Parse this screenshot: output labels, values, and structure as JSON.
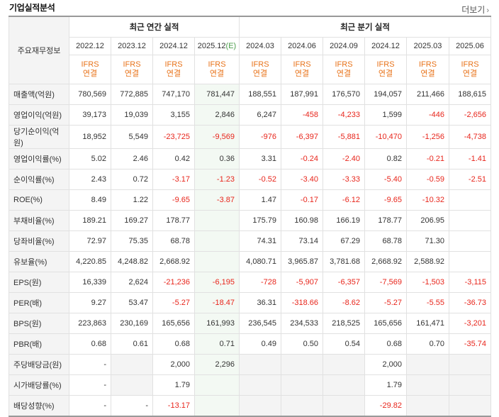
{
  "header": {
    "title": "기업실적분석",
    "more_label": "더보기"
  },
  "table": {
    "row_header": "주요재무정보",
    "group_annual": "최근 연간 실적",
    "group_quarter": "최근 분기 실적",
    "periods": [
      "2022.12",
      "2023.12",
      "2024.12",
      "2025.12",
      "2024.03",
      "2024.06",
      "2024.09",
      "2024.12",
      "2025.03",
      "2025.06"
    ],
    "est_mark": "(E)",
    "ifrs_line1": "IFRS",
    "ifrs_line2": "연결",
    "rows": [
      {
        "label": "매출액(억원)",
        "values": [
          "780,569",
          "772,885",
          "747,170",
          "781,447",
          "188,551",
          "187,991",
          "176,570",
          "194,057",
          "211,466",
          "188,615"
        ]
      },
      {
        "label": "영업이익(억원)",
        "values": [
          "39,173",
          "19,039",
          "3,155",
          "2,846",
          "6,247",
          "-458",
          "-4,233",
          "1,599",
          "-446",
          "-2,656"
        ]
      },
      {
        "label": "당기순이익(억원)",
        "values": [
          "18,952",
          "5,549",
          "-23,725",
          "-9,569",
          "-976",
          "-6,397",
          "-5,881",
          "-10,470",
          "-1,256",
          "-4,738"
        ]
      },
      {
        "label": "영업이익률(%)",
        "values": [
          "5.02",
          "2.46",
          "0.42",
          "0.36",
          "3.31",
          "-0.24",
          "-2.40",
          "0.82",
          "-0.21",
          "-1.41"
        ]
      },
      {
        "label": "순이익률(%)",
        "values": [
          "2.43",
          "0.72",
          "-3.17",
          "-1.23",
          "-0.52",
          "-3.40",
          "-3.33",
          "-5.40",
          "-0.59",
          "-2.51"
        ]
      },
      {
        "label": "ROE(%)",
        "values": [
          "8.49",
          "1.22",
          "-9.65",
          "-3.87",
          "1.47",
          "-0.17",
          "-6.12",
          "-9.65",
          "-10.32",
          ""
        ]
      },
      {
        "label": "부채비율(%)",
        "values": [
          "189.21",
          "169.27",
          "178.77",
          "",
          "175.79",
          "160.98",
          "166.19",
          "178.77",
          "206.95",
          ""
        ]
      },
      {
        "label": "당좌비율(%)",
        "values": [
          "72.97",
          "75.35",
          "68.78",
          "",
          "74.31",
          "73.14",
          "67.29",
          "68.78",
          "71.30",
          ""
        ]
      },
      {
        "label": "유보율(%)",
        "values": [
          "4,220.85",
          "4,248.82",
          "2,668.92",
          "",
          "4,080.71",
          "3,965.87",
          "3,781.68",
          "2,668.92",
          "2,588.92",
          ""
        ]
      },
      {
        "label": "EPS(원)",
        "values": [
          "16,339",
          "2,624",
          "-21,236",
          "-6,195",
          "-728",
          "-5,907",
          "-6,357",
          "-7,569",
          "-1,503",
          "-3,115"
        ]
      },
      {
        "label": "PER(배)",
        "values": [
          "9.27",
          "53.47",
          "-5.27",
          "-18.47",
          "36.31",
          "-318.66",
          "-8.62",
          "-5.27",
          "-5.55",
          "-36.73"
        ]
      },
      {
        "label": "BPS(원)",
        "values": [
          "223,863",
          "230,169",
          "165,656",
          "161,993",
          "236,545",
          "234,533",
          "218,525",
          "165,656",
          "161,471",
          "-3,201"
        ]
      },
      {
        "label": "PBR(배)",
        "values": [
          "0.68",
          "0.61",
          "0.68",
          "0.71",
          "0.49",
          "0.50",
          "0.54",
          "0.68",
          "0.70",
          "-35.74"
        ]
      },
      {
        "label": "주당배당금(원)",
        "values": [
          "-",
          "",
          "2,000",
          "2,296",
          "",
          "",
          "",
          "2,000",
          "",
          ""
        ]
      },
      {
        "label": "시가배당률(%)",
        "values": [
          "-",
          "",
          "1.79",
          "",
          "",
          "",
          "",
          "1.79",
          "",
          ""
        ]
      },
      {
        "label": "배당성향(%)",
        "values": [
          "-",
          "-",
          "-13.17",
          "",
          "",
          "",
          "",
          "-29.82",
          "",
          ""
        ]
      }
    ],
    "gray_cells": [
      [
        13,
        1
      ],
      [
        13,
        4
      ],
      [
        13,
        5
      ],
      [
        13,
        6
      ],
      [
        13,
        8
      ],
      [
        13,
        9
      ],
      [
        14,
        1
      ],
      [
        14,
        4
      ],
      [
        14,
        5
      ],
      [
        14,
        6
      ],
      [
        14,
        8
      ],
      [
        14,
        9
      ],
      [
        15,
        4
      ],
      [
        15,
        5
      ],
      [
        15,
        6
      ],
      [
        15,
        8
      ],
      [
        15,
        9
      ]
    ],
    "colors": {
      "negative": "#e8261c",
      "ifrs": "#e8731a",
      "estimate_bg": "#f3f9f3",
      "estimate_text": "#4a9c4a"
    }
  }
}
